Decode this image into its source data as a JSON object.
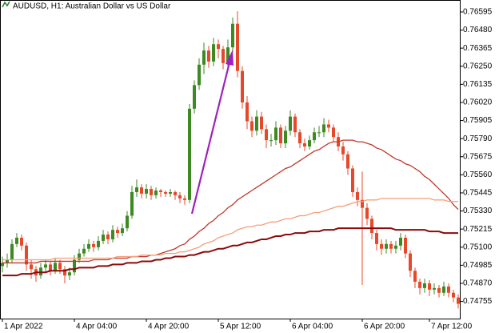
{
  "chart_data": {
    "type": "candlestick",
    "title": "AUDUSD, H1:  Australian Dollar vs US Dollar",
    "categories": [
      "1 Apr 2022",
      null,
      null,
      null,
      null,
      null,
      null,
      null,
      null,
      null,
      null,
      null,
      null,
      null,
      null,
      "4 Apr 04:00",
      null,
      null,
      null,
      null,
      null,
      null,
      null,
      null,
      null,
      null,
      null,
      null,
      null,
      null,
      "4 Apr 20:00",
      null,
      null,
      null,
      null,
      null,
      null,
      null,
      null,
      null,
      null,
      null,
      null,
      null,
      null,
      "5 Apr 12:00",
      null,
      null,
      null,
      null,
      null,
      null,
      null,
      null,
      null,
      null,
      null,
      null,
      null,
      null,
      "6 Apr 04:00",
      null,
      null,
      null,
      null,
      null,
      null,
      null,
      null,
      null,
      null,
      null,
      null,
      null,
      null,
      "6 Apr 20:00",
      null,
      null,
      null,
      null,
      null,
      null,
      null,
      null,
      null,
      null,
      null,
      null,
      null,
      "7 Apr 12:00",
      null,
      null,
      null,
      null,
      null,
      null
    ],
    "open": [
      0.7498,
      0.75,
      0.7502,
      0.7512,
      0.7516,
      0.7511,
      0.7499,
      0.7496,
      0.7492,
      0.7497,
      0.7499,
      0.7495,
      0.75,
      0.7496,
      0.7492,
      0.7494,
      0.7502,
      0.7506,
      0.7509,
      0.7512,
      0.751,
      0.7514,
      0.7518,
      0.7515,
      0.7521,
      0.7519,
      0.7522,
      0.753,
      0.7545,
      0.7548,
      0.7544,
      0.7547,
      0.7543,
      0.7546,
      0.7545,
      0.7544,
      0.7545,
      0.7543,
      0.7541,
      0.754,
      0.7598,
      0.7613,
      0.7626,
      0.7635,
      0.7628,
      0.7639,
      0.7636,
      0.7627,
      0.7637,
      0.7652,
      0.7622,
      0.7602,
      0.759,
      0.7584,
      0.7593,
      0.7585,
      0.7578,
      0.7578,
      0.7586,
      0.7576,
      0.7584,
      0.7593,
      0.7583,
      0.7576,
      0.7574,
      0.7578,
      0.7583,
      0.7583,
      0.7588,
      0.7586,
      0.758,
      0.7574,
      0.7569,
      0.756,
      0.7545,
      0.754,
      0.7535,
      0.7528,
      0.7519,
      0.7512,
      0.7509,
      0.7512,
      0.7509,
      0.7511,
      0.7516,
      0.7506,
      0.7495,
      0.7488,
      0.7484,
      0.7487,
      0.7483,
      0.7484,
      0.7481,
      0.7485,
      0.7481,
      0.7478
    ],
    "high": [
      0.7504,
      0.7506,
      0.7515,
      0.7519,
      0.7518,
      0.7513,
      0.7502,
      0.7498,
      0.75,
      0.7502,
      0.7501,
      0.7503,
      0.7502,
      0.7498,
      0.7497,
      0.7505,
      0.7509,
      0.7512,
      0.7515,
      0.7514,
      0.7517,
      0.7521,
      0.752,
      0.7524,
      0.7523,
      0.7525,
      0.7533,
      0.7549,
      0.7553,
      0.755,
      0.755,
      0.7549,
      0.7548,
      0.7547,
      0.7546,
      0.7547,
      0.7546,
      0.7545,
      0.7543,
      0.7601,
      0.7616,
      0.763,
      0.764,
      0.7638,
      0.7643,
      0.7642,
      0.7638,
      0.7642,
      0.7656,
      0.766,
      0.7625,
      0.7606,
      0.7593,
      0.7597,
      0.7596,
      0.7588,
      0.7582,
      0.759,
      0.7588,
      0.7587,
      0.7597,
      0.7595,
      0.7585,
      0.7579,
      0.7581,
      0.7586,
      0.7587,
      0.7592,
      0.7591,
      0.7588,
      0.7583,
      0.7577,
      0.7571,
      0.7562,
      0.7548,
      0.7558,
      0.7538,
      0.753,
      0.7521,
      0.7515,
      0.7515,
      0.7514,
      0.7514,
      0.7519,
      0.7518,
      0.7508,
      0.7497,
      0.749,
      0.749,
      0.7489,
      0.7487,
      0.7486,
      0.7488,
      0.7487,
      0.7483,
      0.748
    ],
    "low": [
      0.7494,
      0.7497,
      0.75,
      0.751,
      0.7508,
      0.7495,
      0.749,
      0.7488,
      0.749,
      0.7494,
      0.7492,
      0.7493,
      0.7493,
      0.7487,
      0.7489,
      0.7492,
      0.75,
      0.7504,
      0.7507,
      0.7507,
      0.7508,
      0.7512,
      0.7512,
      0.7513,
      0.7516,
      0.7517,
      0.752,
      0.7528,
      0.7542,
      0.7541,
      0.7541,
      0.754,
      0.7541,
      0.7542,
      0.7542,
      0.7542,
      0.754,
      0.7538,
      0.7537,
      0.7538,
      0.7595,
      0.761,
      0.762,
      0.7624,
      0.7625,
      0.763,
      0.7623,
      0.7624,
      0.7634,
      0.7618,
      0.7598,
      0.7585,
      0.758,
      0.7581,
      0.7582,
      0.7573,
      0.7574,
      0.7575,
      0.7573,
      0.7573,
      0.7581,
      0.758,
      0.7573,
      0.7571,
      0.7572,
      0.7576,
      0.758,
      0.758,
      0.7583,
      0.7577,
      0.7571,
      0.7565,
      0.7556,
      0.7542,
      0.7536,
      0.7486,
      0.7524,
      0.7515,
      0.7508,
      0.7505,
      0.7506,
      0.7506,
      0.7506,
      0.7508,
      0.7503,
      0.7491,
      0.7484,
      0.748,
      0.7481,
      0.7479,
      0.748,
      0.7478,
      0.7479,
      0.7478,
      0.7475,
      0.7471
    ],
    "close": [
      0.75,
      0.7502,
      0.7512,
      0.7516,
      0.7511,
      0.7499,
      0.7496,
      0.7492,
      0.7497,
      0.7499,
      0.7495,
      0.75,
      0.7496,
      0.7492,
      0.7494,
      0.7502,
      0.7506,
      0.7509,
      0.7512,
      0.751,
      0.7514,
      0.7518,
      0.7515,
      0.7521,
      0.7519,
      0.7522,
      0.753,
      0.7545,
      0.7548,
      0.7544,
      0.7547,
      0.7543,
      0.7546,
      0.7545,
      0.7544,
      0.7545,
      0.7543,
      0.7541,
      0.754,
      0.7598,
      0.7613,
      0.7626,
      0.7635,
      0.7628,
      0.7639,
      0.7636,
      0.7627,
      0.7637,
      0.7652,
      0.7622,
      0.7602,
      0.759,
      0.7584,
      0.7593,
      0.7585,
      0.7578,
      0.7578,
      0.7586,
      0.7576,
      0.7584,
      0.7593,
      0.7583,
      0.7576,
      0.7574,
      0.7578,
      0.7583,
      0.7583,
      0.7588,
      0.7586,
      0.758,
      0.7574,
      0.7569,
      0.756,
      0.7545,
      0.754,
      0.7535,
      0.7528,
      0.7519,
      0.7512,
      0.7509,
      0.7512,
      0.7509,
      0.7511,
      0.7516,
      0.7506,
      0.7495,
      0.7488,
      0.7484,
      0.7487,
      0.7483,
      0.7484,
      0.7481,
      0.7485,
      0.7481,
      0.7478,
      0.7474
    ],
    "up_color": "#3b8a22",
    "down_color": "#e8472a",
    "overlays": [
      {
        "color": "#c0392b",
        "values": [
          0.75,
          0.75,
          0.75,
          0.75,
          0.75,
          0.75,
          0.75,
          0.75,
          0.7501,
          0.7501,
          0.7501,
          0.7501,
          0.7501,
          0.7501,
          0.7501,
          0.7501,
          0.7501,
          0.7501,
          0.7501,
          0.7502,
          0.7502,
          0.7502,
          0.7502,
          0.7503,
          0.7503,
          0.7503,
          0.7503,
          0.7504,
          0.7504,
          0.7504,
          0.7504,
          0.7505,
          0.7505,
          0.7506,
          0.7507,
          0.7508,
          0.7509,
          0.7511,
          0.7512,
          0.7515,
          0.7517,
          0.752,
          0.7522,
          0.7525,
          0.7527,
          0.753,
          0.7532,
          0.7535,
          0.7537,
          0.754,
          0.7542,
          0.7544,
          0.7546,
          0.7548,
          0.755,
          0.7552,
          0.7554,
          0.7556,
          0.7558,
          0.756,
          0.7561,
          0.7563,
          0.7565,
          0.7567,
          0.7569,
          0.7571,
          0.7572,
          0.7574,
          0.7576,
          0.7577,
          0.7577,
          0.7578,
          0.7578,
          0.7578,
          0.7577,
          0.7577,
          0.7576,
          0.7575,
          0.7573,
          0.7572,
          0.757,
          0.7568,
          0.7566,
          0.7565,
          0.7563,
          0.7562,
          0.756,
          0.7558,
          0.7555,
          0.7553,
          0.755,
          0.7547,
          0.7544,
          0.7541,
          0.7537,
          0.7534
        ]
      },
      {
        "color": "#f4a07a",
        "values": [
          0.7502,
          0.7502,
          0.7502,
          0.7502,
          0.7502,
          0.7502,
          0.7502,
          0.7502,
          0.7502,
          0.7502,
          0.7502,
          0.7503,
          0.7503,
          0.7503,
          0.7503,
          0.7503,
          0.7503,
          0.7503,
          0.7503,
          0.7503,
          0.7503,
          0.7503,
          0.7503,
          0.7503,
          0.7504,
          0.7504,
          0.7504,
          0.7504,
          0.7504,
          0.7505,
          0.7505,
          0.7505,
          0.7505,
          0.7505,
          0.7506,
          0.7506,
          0.7506,
          0.7507,
          0.7507,
          0.7508,
          0.7509,
          0.751,
          0.7512,
          0.7513,
          0.7514,
          0.7516,
          0.7517,
          0.7518,
          0.7519,
          0.7521,
          0.7522,
          0.7523,
          0.7523,
          0.7524,
          0.7524,
          0.7525,
          0.7526,
          0.7526,
          0.7527,
          0.7528,
          0.7528,
          0.7529,
          0.753,
          0.753,
          0.7531,
          0.7532,
          0.7532,
          0.7533,
          0.7534,
          0.7535,
          0.7536,
          0.7536,
          0.7537,
          0.7538,
          0.7539,
          0.7539,
          0.754,
          0.754,
          0.754,
          0.7541,
          0.7541,
          0.7541,
          0.7541,
          0.7541,
          0.7541,
          0.7541,
          0.7541,
          0.7541,
          0.7541,
          0.7541,
          0.754,
          0.754,
          0.754,
          0.7539,
          0.7539,
          0.7539
        ]
      },
      {
        "color": "#8b0a0a",
        "values": [
          0.7492,
          0.7492,
          0.7492,
          0.7492,
          0.7493,
          0.7493,
          0.7493,
          0.7494,
          0.7494,
          0.7494,
          0.7495,
          0.7495,
          0.7495,
          0.7495,
          0.7496,
          0.7496,
          0.7497,
          0.7497,
          0.7497,
          0.7497,
          0.7498,
          0.7498,
          0.7498,
          0.7499,
          0.7499,
          0.7499,
          0.75,
          0.75,
          0.75,
          0.7501,
          0.7501,
          0.7501,
          0.7502,
          0.7502,
          0.7503,
          0.7503,
          0.7504,
          0.7504,
          0.7504,
          0.7505,
          0.7505,
          0.7506,
          0.7507,
          0.7507,
          0.7508,
          0.7509,
          0.7509,
          0.751,
          0.7511,
          0.7511,
          0.7512,
          0.7513,
          0.7513,
          0.7514,
          0.7515,
          0.7515,
          0.7516,
          0.7517,
          0.7517,
          0.7518,
          0.7518,
          0.7519,
          0.7519,
          0.7519,
          0.752,
          0.752,
          0.752,
          0.7521,
          0.7521,
          0.7521,
          0.7522,
          0.7522,
          0.7522,
          0.7522,
          0.7522,
          0.7522,
          0.7522,
          0.7522,
          0.7522,
          0.7522,
          0.7522,
          0.7522,
          0.7521,
          0.7521,
          0.7521,
          0.7521,
          0.7521,
          0.7521,
          0.7521,
          0.752,
          0.752,
          0.752,
          0.7519,
          0.7519,
          0.7519,
          0.7519
        ]
      }
    ],
    "ylim": [
      0.74646,
      0.76671
    ],
    "yticks": [
      0.74755,
      {
        "value": 0.7487,
        "label": "0.74870"
      },
      0.74985,
      {
        "value": 0.751,
        "label": "0.75100"
      },
      0.75215,
      {
        "value": 0.7533,
        "label": "0.75330"
      },
      0.75445,
      {
        "value": 0.7556,
        "label": "0.75560"
      },
      0.75675,
      {
        "value": 0.7579,
        "label": "0.75790"
      },
      0.75905,
      {
        "value": 0.7602,
        "label": "0.76020"
      },
      0.76135,
      {
        "value": 0.7625,
        "label": "0.76250"
      },
      0.76365,
      {
        "value": 0.7648,
        "label": "0.76480"
      },
      0.76595
    ]
  }
}
